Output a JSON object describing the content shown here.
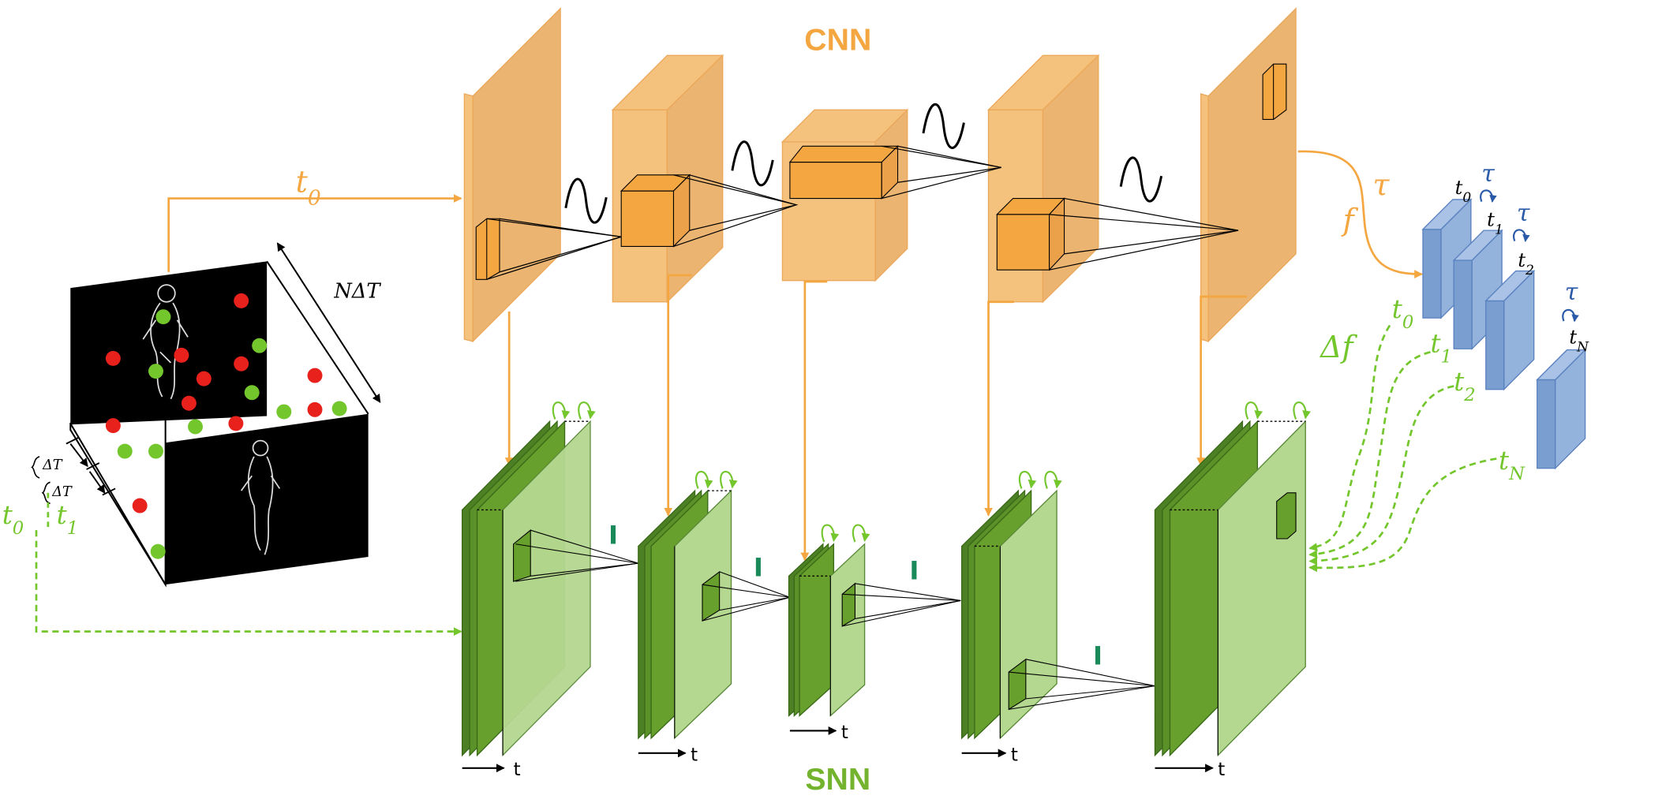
{
  "titles": {
    "cnn": "CNN",
    "snn": "SNN"
  },
  "labels": {
    "t0_top": "t0",
    "n_delta_t": "NΔT",
    "delta_t": "ΔT",
    "t0_left": "t0",
    "t1_left": "t1",
    "f": "f",
    "tau": "τ",
    "delta_f": "Δf",
    "time_axis": "t",
    "threshold": "I",
    "green_t0": "t0",
    "green_t1": "t1",
    "green_t2": "t2",
    "green_tN": "tN",
    "blue_t0": "t0",
    "blue_t1": "t1",
    "blue_t2": "t2",
    "blue_tN": "tN"
  },
  "colors": {
    "cnn_orange": "#f4a640",
    "cnn_face": "#f5c27d",
    "cnn_side": "#ebb471",
    "snn_dark": "#4d7f24",
    "snn_mid": "#67a02c",
    "snn_light": "#b5d891",
    "blue": "#7b9ed1",
    "event_red": "#e8211c",
    "event_green": "#74c62d"
  }
}
